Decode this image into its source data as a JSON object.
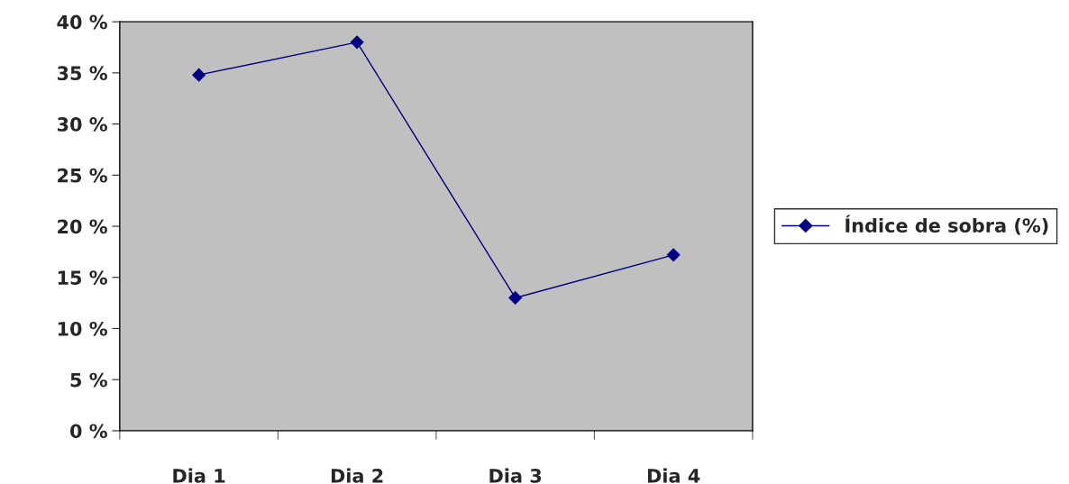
{
  "chart_data": {
    "type": "line",
    "categories": [
      "Dia 1",
      "Dia 2",
      "Dia 3",
      "Dia 4"
    ],
    "series": [
      {
        "name": "Índice de sobra (%)",
        "color": "#000080",
        "values": [
          34.8,
          38.0,
          13.0,
          17.2
        ]
      }
    ],
    "ylim": [
      0,
      40
    ],
    "yticks": [
      {
        "value": 0,
        "label": "0 %"
      },
      {
        "value": 5,
        "label": "5 %"
      },
      {
        "value": 10,
        "label": "10 %"
      },
      {
        "value": 15,
        "label": "15 %"
      },
      {
        "value": 20,
        "label": "20 %"
      },
      {
        "value": 25,
        "label": "25 %"
      },
      {
        "value": 30,
        "label": "30 %"
      },
      {
        "value": 35,
        "label": "35 %"
      },
      {
        "value": 40,
        "label": "40 %"
      }
    ],
    "marker": "diamond",
    "line_style": "solid",
    "grid": false,
    "legend": "right"
  }
}
